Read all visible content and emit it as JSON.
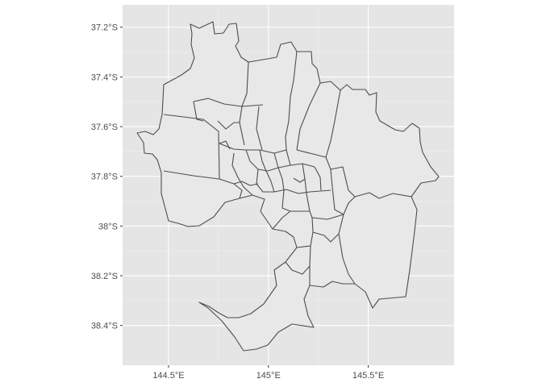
{
  "map": {
    "title": "",
    "panel_background": "#e5e5e5",
    "region_fill": "#e8e8e8",
    "border_color": "#4d4d4d",
    "grid_color": "#ffffff",
    "axes": {
      "x": {
        "label": "",
        "range_deg": [
          144.27,
          145.93
        ],
        "ticks": [
          {
            "value": 144.5,
            "label": "144.5°E"
          },
          {
            "value": 145.0,
            "label": "145°E"
          },
          {
            "value": 145.5,
            "label": "145.5°E"
          }
        ]
      },
      "y": {
        "label": "",
        "range_deg": [
          -38.56,
          -37.11
        ],
        "ticks": [
          {
            "value": -37.2,
            "label": "37.2°S"
          },
          {
            "value": -37.4,
            "label": "37.4°S"
          },
          {
            "value": -37.6,
            "label": "37.6°S"
          },
          {
            "value": -37.8,
            "label": "37.8°S"
          },
          {
            "value": -38.0,
            "label": "38°S"
          },
          {
            "value": -38.2,
            "label": "38.2°S"
          },
          {
            "value": -38.4,
            "label": "38.4°S"
          }
        ]
      }
    }
  }
}
